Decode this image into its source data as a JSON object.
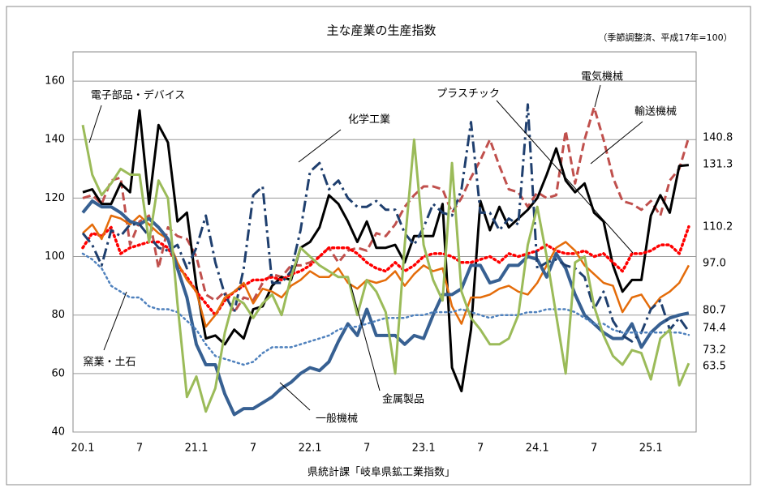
{
  "chart_data": {
    "type": "line",
    "title": "主な産業の生産指数",
    "subtitle": "（季節調整済、平成17年=100）",
    "x_label": "県統計課「岐阜県鉱工業指数」",
    "categories": [
      "20.1",
      null,
      null,
      null,
      null,
      null,
      "7",
      null,
      null,
      null,
      null,
      null,
      "21.1",
      null,
      null,
      null,
      null,
      null,
      "7",
      null,
      null,
      null,
      null,
      null,
      "22.1",
      null,
      null,
      null,
      null,
      null,
      "7",
      null,
      null,
      null,
      null,
      null,
      "23.1",
      null,
      null,
      null,
      null,
      null,
      "7",
      null,
      null,
      null,
      null,
      null,
      "24.1",
      null,
      null,
      null,
      null,
      null,
      "7",
      null,
      null,
      null,
      null,
      null,
      "25.1",
      null,
      null,
      null,
      null
    ],
    "ylim": [
      40,
      170
    ],
    "yticks": [
      40,
      60,
      80,
      100,
      120,
      140,
      160
    ],
    "grid": true,
    "series": [
      {
        "name": "電気機械",
        "color": "#c0504d",
        "line_style": "dash",
        "values": [
          120,
          121,
          118,
          126,
          127,
          104,
          112,
          114,
          96,
          110,
          107,
          106,
          100,
          87,
          85,
          88,
          81,
          86,
          85,
          91,
          94,
          93,
          97,
          97,
          98,
          100,
          103,
          98,
          102,
          103,
          102,
          108,
          107,
          111,
          117,
          121,
          124,
          124,
          123,
          115,
          120,
          127,
          133,
          140,
          131,
          123,
          122,
          117,
          122,
          120,
          121,
          143,
          125,
          140,
          151,
          140,
          127,
          119,
          118,
          116,
          119,
          114,
          126,
          130,
          140.8
        ]
      },
      {
        "name": "輸送機械",
        "color": "#000000",
        "line_style": "solid",
        "values": [
          122,
          123,
          118,
          118,
          125,
          122,
          150,
          118,
          145,
          139,
          112,
          115,
          90,
          72,
          73,
          70,
          75,
          72,
          82,
          83,
          90,
          93,
          92,
          103,
          105,
          110,
          121,
          118,
          112,
          105,
          112,
          103,
          103,
          104,
          98,
          107,
          107,
          107,
          118,
          62,
          54,
          75,
          119,
          109,
          117,
          110,
          113,
          116,
          120,
          128,
          137,
          126,
          122,
          125,
          115,
          112,
          97,
          88,
          92,
          92,
          114,
          121,
          115,
          131,
          131.3
        ]
      },
      {
        "name": "プラスチック",
        "color": "#ff0000",
        "line_style": "dot",
        "values": [
          103,
          108,
          107,
          110,
          101,
          103,
          104,
          105,
          105,
          103,
          97,
          93,
          88,
          84,
          80,
          85,
          88,
          90,
          92,
          92,
          93,
          92,
          94,
          95,
          97,
          100,
          103,
          103,
          103,
          101,
          98,
          96,
          95,
          98,
          95,
          97,
          100,
          101,
          101,
          100,
          98,
          98,
          99,
          100,
          98,
          101,
          100,
          101,
          102,
          104,
          102,
          101,
          101,
          102,
          100,
          101,
          98,
          95,
          101,
          101,
          102,
          104,
          104,
          101,
          110.2
        ]
      },
      {
        "name": "金属製品",
        "color": "#e46c0a",
        "line_style": "solid",
        "values": [
          108,
          111,
          106,
          114,
          113,
          111,
          114,
          111,
          108,
          106,
          98,
          92,
          88,
          76,
          80,
          86,
          88,
          91,
          84,
          89,
          88,
          86,
          90,
          92,
          95,
          93,
          93,
          96,
          91,
          89,
          92,
          91,
          92,
          95,
          90,
          94,
          97,
          95,
          96,
          83,
          77,
          86,
          86,
          87,
          89,
          90,
          88,
          87,
          91,
          97,
          103,
          105,
          102,
          97,
          94,
          91,
          90,
          81,
          86,
          87,
          82,
          86,
          88,
          91,
          97
        ],
        "value_labels": {
          "64": "97.0"
        }
      },
      {
        "name": "一般機械",
        "color": "#376092",
        "line_style": "solid",
        "values": [
          115,
          119,
          117,
          117,
          115,
          112,
          111,
          113,
          110,
          106,
          96,
          86,
          70,
          63,
          63,
          53,
          46,
          48,
          48,
          50,
          52,
          55,
          57,
          60,
          62,
          61,
          64,
          71,
          77,
          73,
          82,
          73,
          73,
          73,
          70,
          73,
          72,
          80,
          87,
          87,
          89,
          97,
          97,
          91,
          92,
          97,
          97,
          100,
          99,
          93,
          101,
          96,
          87,
          80,
          77,
          74,
          72,
          72,
          77,
          69,
          74,
          77,
          79,
          80,
          80.7
        ]
      },
      {
        "name": "化学工業",
        "color": "#1f3f6e",
        "line_style": "dashdot",
        "values": [
          108,
          104,
          97,
          109,
          107,
          111,
          111,
          107,
          103,
          102,
          104,
          96,
          103,
          114,
          98,
          87,
          81,
          96,
          121,
          124,
          91,
          91,
          95,
          109,
          129,
          132,
          123,
          126,
          120,
          117,
          117,
          119,
          116,
          116,
          108,
          104,
          110,
          118,
          115,
          114,
          123,
          146,
          115,
          115,
          109,
          113,
          111,
          152,
          96,
          98,
          99,
          97,
          96,
          93,
          82,
          88,
          78,
          73,
          71,
          74,
          82,
          85,
          75,
          79,
          74.4
        ]
      },
      {
        "name": "窯業・土石",
        "color": "#4f81bd",
        "line_style": "dot",
        "values": [
          101,
          99,
          96,
          90,
          88,
          86,
          86,
          83,
          82,
          82,
          81,
          78,
          75,
          70,
          66,
          65,
          64,
          63,
          64,
          67,
          69,
          69,
          69,
          70,
          71,
          72,
          73,
          75,
          76,
          76,
          77,
          78,
          79,
          79,
          79,
          80,
          80,
          81,
          81,
          81,
          82,
          81,
          80,
          79,
          80,
          80,
          80,
          81,
          81,
          82,
          82,
          82,
          81,
          79,
          77,
          77,
          75,
          74,
          74,
          74,
          74,
          74,
          74,
          74,
          73.2
        ]
      },
      {
        "name": "電子部品・デバイス",
        "color": "#9bbb59",
        "line_style": "solid",
        "values": [
          145,
          128,
          121,
          125,
          130,
          128,
          128,
          105,
          126,
          120,
          84,
          52,
          59,
          47,
          55,
          74,
          86,
          84,
          79,
          84,
          87,
          80,
          93,
          103,
          100,
          97,
          95,
          93,
          93,
          80,
          92,
          88,
          81,
          60,
          104,
          140,
          104,
          92,
          85,
          132,
          88,
          79,
          75,
          70,
          70,
          72,
          80,
          104,
          117,
          100,
          80,
          60,
          98,
          100,
          83,
          73,
          66,
          63,
          68,
          67,
          58,
          72,
          75,
          56,
          63.5
        ]
      }
    ]
  }
}
